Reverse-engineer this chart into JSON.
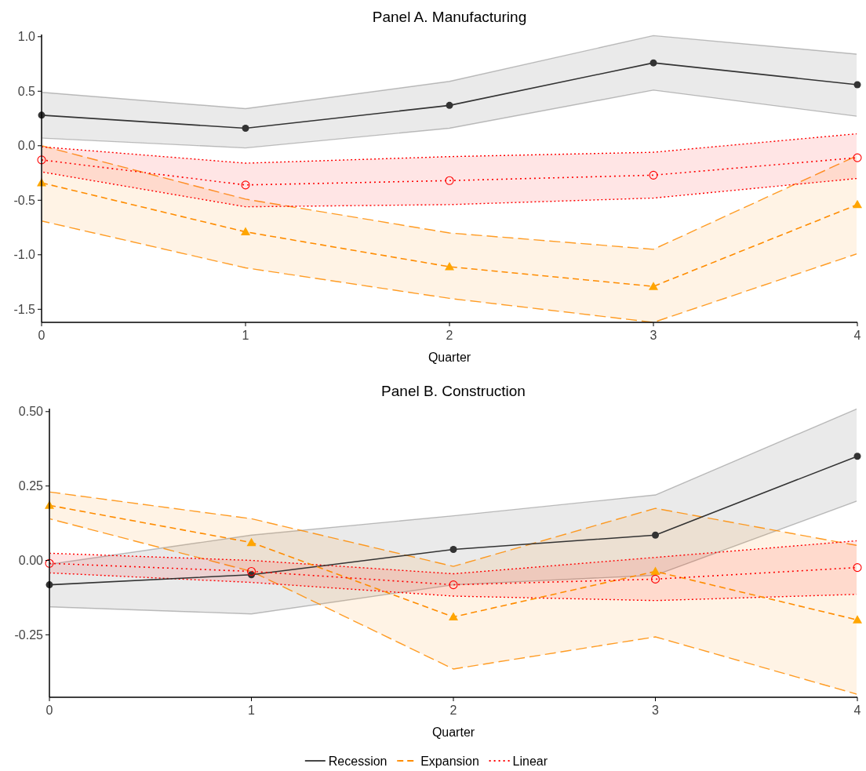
{
  "chart_data": [
    {
      "type": "line",
      "title": "Panel A. Manufacturing",
      "xlabel": "Quarter",
      "x": [
        0,
        1,
        2,
        3,
        4
      ],
      "xlim": [
        0,
        4
      ],
      "xticks": [
        0,
        1,
        2,
        3,
        4
      ],
      "ylim": [
        -1.62,
        1.02
      ],
      "yticks": [
        {
          "value": -1.5,
          "label": "-1.5"
        },
        {
          "value": -1,
          "label": "-1.0"
        },
        {
          "value": -0.5,
          "label": "-0.5"
        },
        {
          "value": 0,
          "label": "0.0"
        },
        {
          "value": 0.5,
          "label": "0.5"
        },
        {
          "value": 1,
          "label": "1.0"
        }
      ],
      "grid": false,
      "series": [
        {
          "color": "#333333",
          "marker": "circle",
          "line_style": "solid",
          "values": [
            0.28,
            0.16,
            0.37,
            0.76,
            0.56
          ],
          "lower": [
            0.07,
            -0.02,
            0.16,
            0.51,
            0.27
          ],
          "upper": [
            0.49,
            0.34,
            0.59,
            1.01,
            0.84
          ]
        },
        {
          "color": "#ff8c00",
          "marker": "triangle",
          "line_style": "dashed",
          "values": [
            -0.34,
            -0.79,
            -1.11,
            -1.29,
            -0.54
          ],
          "lower": [
            -0.69,
            -1.12,
            -1.4,
            -1.62,
            -0.99
          ],
          "upper": [
            0.0,
            -0.49,
            -0.8,
            -0.95,
            -0.09
          ]
        },
        {
          "color": "#ff0000",
          "marker": "circle-open",
          "line_style": "dotted",
          "values": [
            -0.13,
            -0.36,
            -0.32,
            -0.27,
            -0.11
          ],
          "lower": [
            -0.24,
            -0.56,
            -0.54,
            -0.48,
            -0.3
          ],
          "upper": [
            -0.01,
            -0.16,
            -0.1,
            -0.06,
            0.11
          ]
        }
      ]
    },
    {
      "type": "line",
      "title": "Panel B. Construction",
      "xlabel": "Quarter",
      "x": [
        0,
        1,
        2,
        3,
        4
      ],
      "xlim": [
        0,
        4
      ],
      "xticks": [
        0,
        1,
        2,
        3,
        4
      ],
      "ylim": [
        -0.46,
        0.51
      ],
      "yticks": [
        {
          "value": -0.25,
          "label": "-0.25"
        },
        {
          "value": 0,
          "label": "0.00"
        },
        {
          "value": 0.25,
          "label": "0.25"
        },
        {
          "value": 0.5,
          "label": "0.50"
        }
      ],
      "grid": false,
      "legend": "bottom",
      "series": [
        {
          "name": "Recession",
          "color": "#333333",
          "marker": "circle",
          "line_style": "solid",
          "values": [
            -0.082,
            -0.048,
            0.037,
            0.085,
            0.35
          ],
          "lower": [
            -0.156,
            -0.18,
            -0.082,
            -0.05,
            0.2
          ],
          "upper": [
            -0.013,
            0.085,
            0.15,
            0.22,
            0.51
          ]
        },
        {
          "name": "Expansion",
          "color": "#ff8c00",
          "marker": "triangle",
          "line_style": "dashed",
          "values": [
            0.185,
            0.06,
            -0.19,
            -0.037,
            -0.2
          ],
          "lower": [
            0.14,
            -0.037,
            -0.365,
            -0.257,
            -0.45
          ],
          "upper": [
            0.23,
            0.14,
            -0.02,
            0.175,
            0.05
          ]
        },
        {
          "name": "Linear",
          "color": "#ff0000",
          "marker": "circle-open",
          "line_style": "dotted",
          "values": [
            -0.01,
            -0.037,
            -0.082,
            -0.063,
            -0.024
          ],
          "lower": [
            -0.042,
            -0.074,
            -0.12,
            -0.135,
            -0.114
          ],
          "upper": [
            0.024,
            0.0,
            -0.045,
            0.01,
            0.066
          ]
        }
      ]
    }
  ]
}
